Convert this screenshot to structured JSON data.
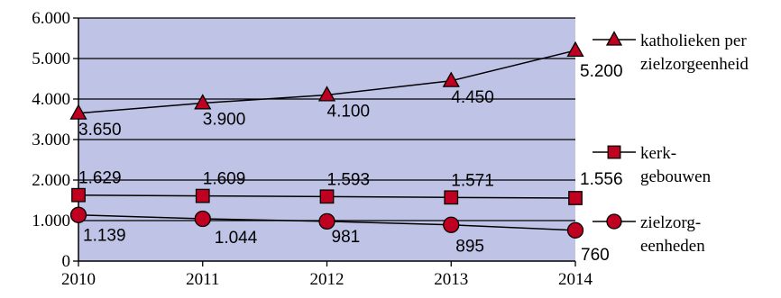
{
  "chart_data": {
    "type": "line",
    "x": [
      "2010",
      "2011",
      "2012",
      "2013",
      "2014"
    ],
    "ylim": [
      0,
      6000
    ],
    "yticks": [
      "0",
      "1.000",
      "2.000",
      "3.000",
      "4.000",
      "5.000",
      "6.000"
    ],
    "grid": true,
    "legend_position": "right",
    "plot_background": "#bfc3e6",
    "marker_fill": "#c00020",
    "series": [
      {
        "name_lines": [
          "katholieken per",
          "zielzorgeenheid"
        ],
        "marker": "triangle",
        "values": [
          3650,
          3900,
          4100,
          4450,
          5200
        ],
        "labels": [
          "3.650",
          "3.900",
          "4.100",
          "4.450",
          "5.200"
        ]
      },
      {
        "name_lines": [
          "kerk-",
          "gebouwen"
        ],
        "marker": "square",
        "values": [
          1629,
          1609,
          1593,
          1571,
          1556
        ],
        "labels": [
          "1.629",
          "1.609",
          "1.593",
          "1.571",
          "1.556"
        ]
      },
      {
        "name_lines": [
          "zielzorg-",
          "eenheden"
        ],
        "marker": "circle",
        "values": [
          1139,
          1044,
          981,
          895,
          760
        ],
        "labels": [
          "1.139",
          "1.044",
          "981",
          "895",
          "760"
        ]
      }
    ]
  }
}
